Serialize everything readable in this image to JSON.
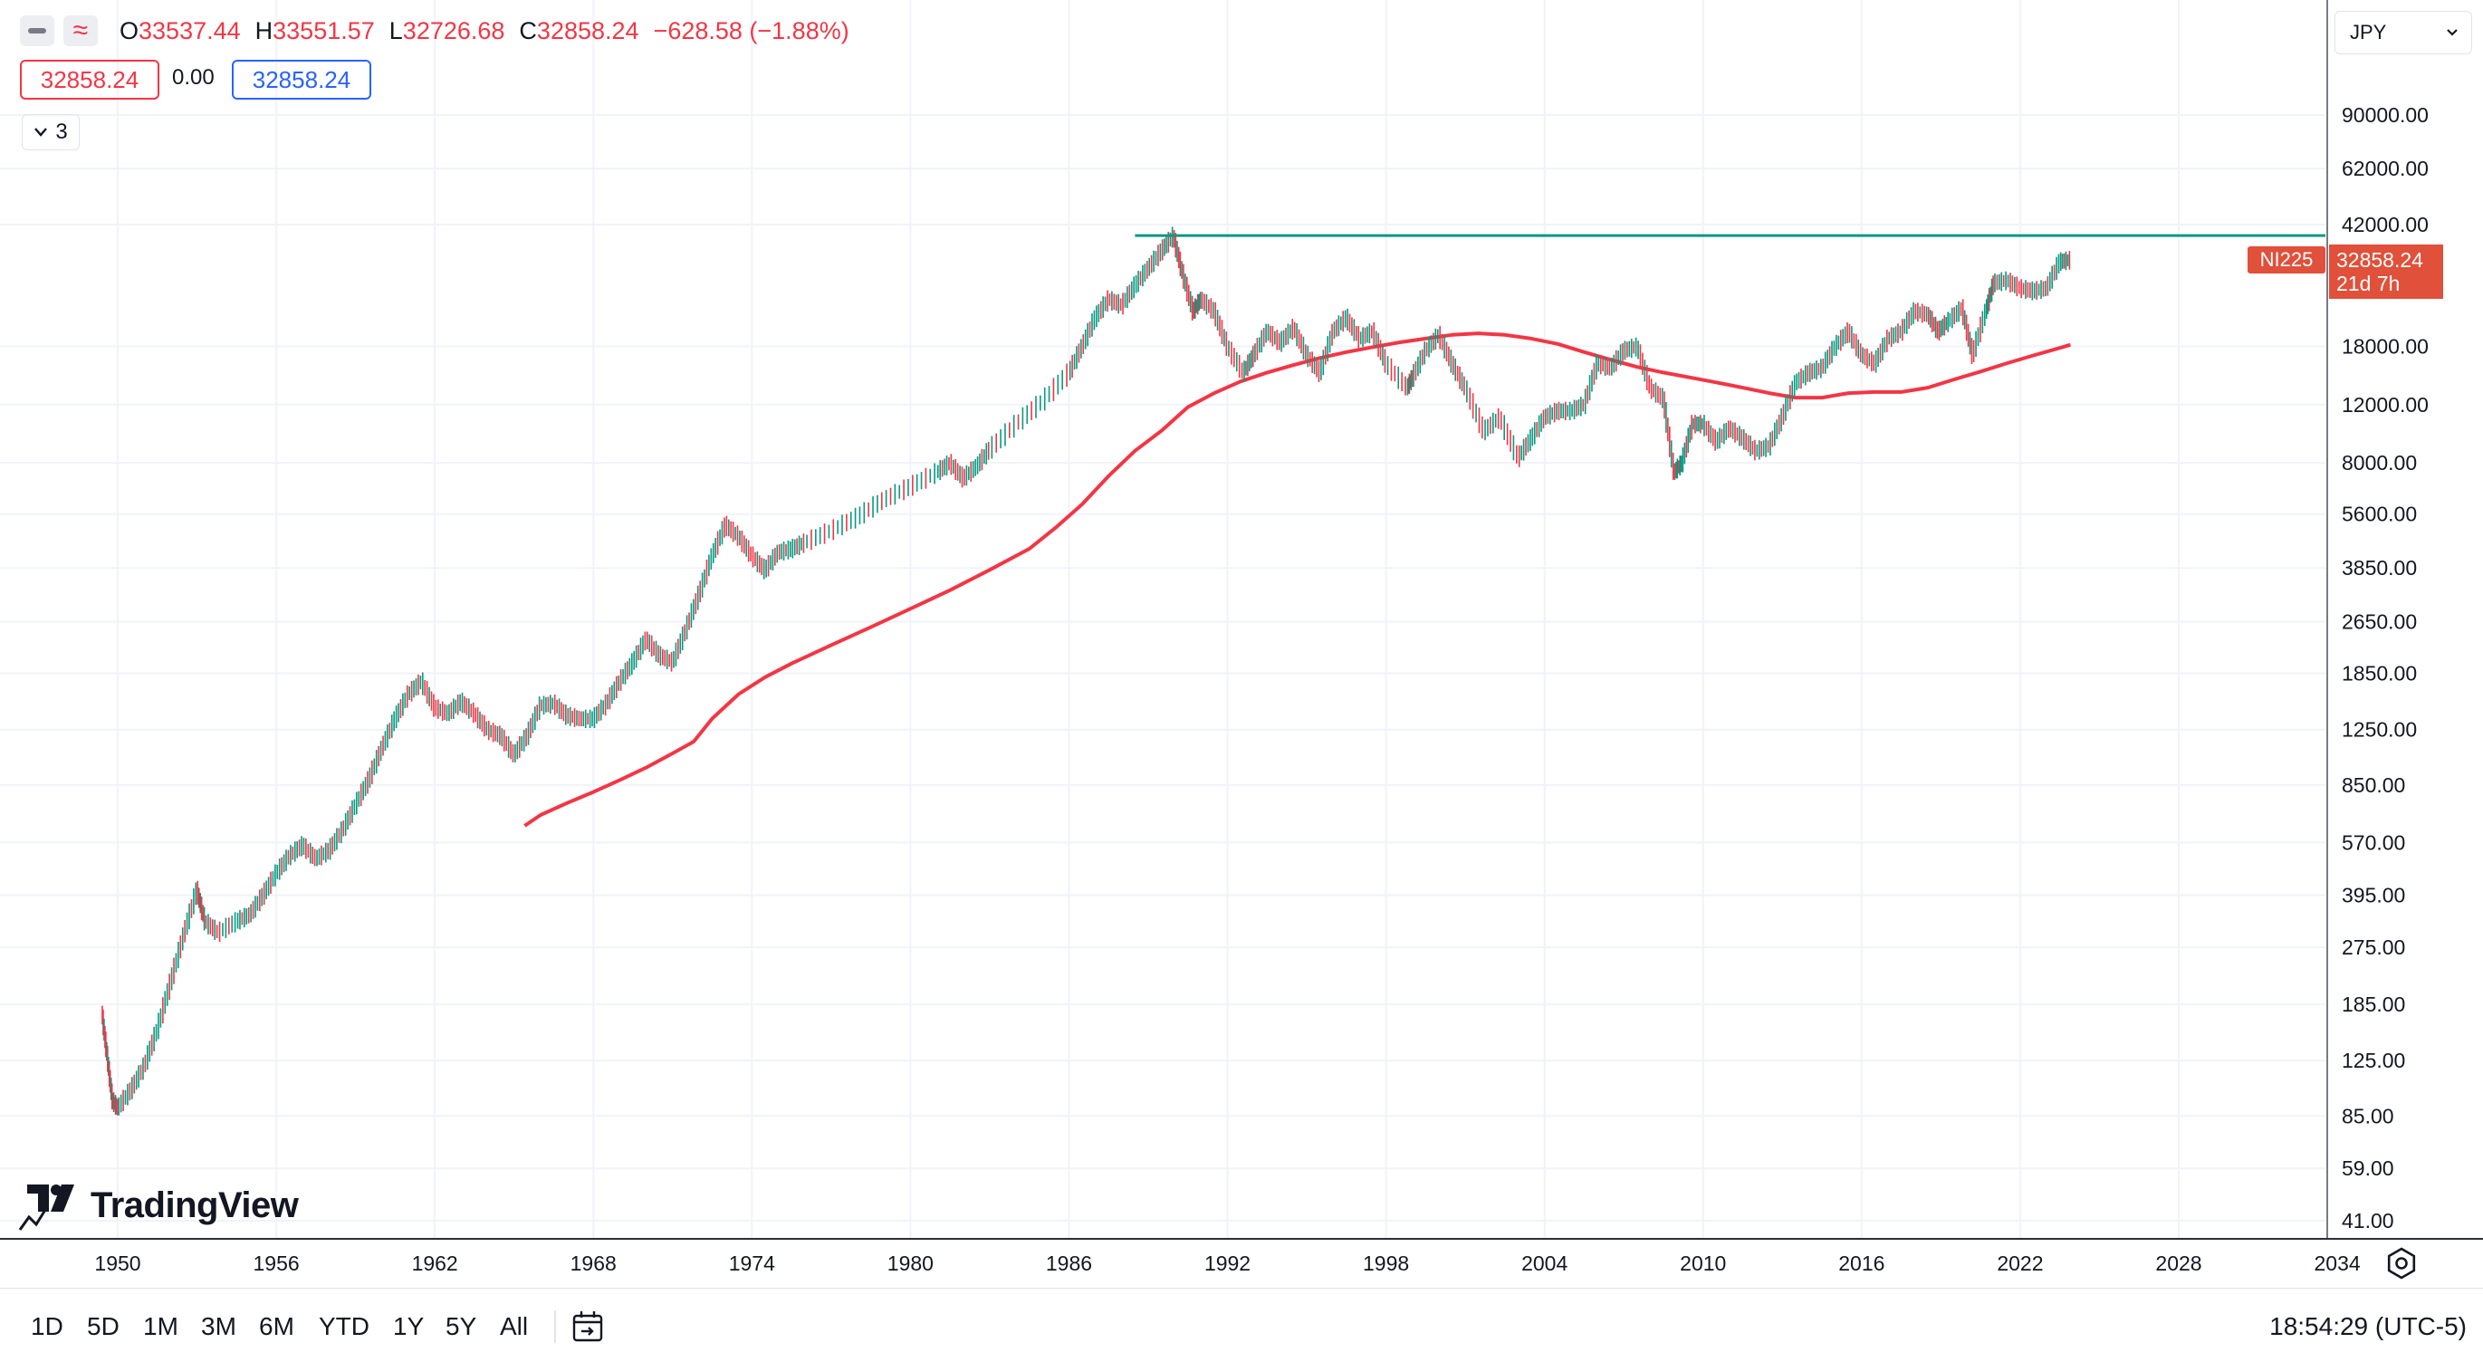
{
  "legend": {
    "ohlc": [
      {
        "label": "O",
        "value": "33537.44"
      },
      {
        "label": "H",
        "value": "33551.57"
      },
      {
        "label": "L",
        "value": "32726.68"
      },
      {
        "label": "C",
        "value": "32858.24"
      }
    ],
    "change": "−628.58 (−1.88%)",
    "bid": "32858.24",
    "spread": "0.00",
    "ask": "32858.24",
    "collapsed_count": "3"
  },
  "currency": "JPY",
  "price_label": {
    "symbol": "NI225",
    "price": "32858.24",
    "countdown": "21d 7h"
  },
  "ranges": [
    "1D",
    "5D",
    "1M",
    "3M",
    "6M",
    "YTD",
    "1Y",
    "5Y",
    "All"
  ],
  "clock": "18:54:29 (UTC-5)",
  "logo_text": "TradingView",
  "colors": {
    "up": "#089981",
    "down": "#f23645",
    "ma": "#f23645",
    "resistance": "#089981",
    "label_bg": "#e0503a",
    "ask_border": "#2962ff"
  },
  "chart_data": {
    "type": "line",
    "scale": "log",
    "grid": true,
    "y_ticks": [
      "90000.00",
      "62000.00",
      "42000.00",
      "18000.00",
      "12000.00",
      "8000.00",
      "5600.00",
      "3850.00",
      "2650.00",
      "1850.00",
      "1250.00",
      "850.00",
      "570.00",
      "395.00",
      "275.00",
      "185.00",
      "125.00",
      "85.00",
      "59.00",
      "41.00"
    ],
    "x_ticks": [
      "1950",
      "1956",
      "1962",
      "1968",
      "1974",
      "1980",
      "1986",
      "1992",
      "1998",
      "2004",
      "2010",
      "2016",
      "2022",
      "2028",
      "2034"
    ],
    "xlim": [
      1949.6,
      2035.3
    ],
    "series": [
      {
        "role": "price",
        "points": [
          [
            1949.4,
            176
          ],
          [
            1949.6,
            130
          ],
          [
            1949.8,
            95
          ],
          [
            1950.0,
            90
          ],
          [
            1950.5,
            102
          ],
          [
            1951.0,
            120
          ],
          [
            1951.5,
            155
          ],
          [
            1952.0,
            215
          ],
          [
            1952.5,
            300
          ],
          [
            1953.0,
            410
          ],
          [
            1953.3,
            330
          ],
          [
            1953.8,
            305
          ],
          [
            1954.5,
            330
          ],
          [
            1955.0,
            345
          ],
          [
            1955.5,
            395
          ],
          [
            1956.0,
            460
          ],
          [
            1956.5,
            520
          ],
          [
            1957.0,
            560
          ],
          [
            1957.5,
            510
          ],
          [
            1958.0,
            540
          ],
          [
            1958.5,
            620
          ],
          [
            1959.0,
            740
          ],
          [
            1959.5,
            880
          ],
          [
            1960.0,
            1100
          ],
          [
            1960.5,
            1350
          ],
          [
            1961.0,
            1600
          ],
          [
            1961.5,
            1750
          ],
          [
            1962.0,
            1460
          ],
          [
            1962.5,
            1400
          ],
          [
            1963.0,
            1520
          ],
          [
            1963.5,
            1400
          ],
          [
            1964.0,
            1250
          ],
          [
            1964.5,
            1200
          ],
          [
            1965.0,
            1050
          ],
          [
            1965.5,
            1200
          ],
          [
            1966.0,
            1480
          ],
          [
            1966.5,
            1500
          ],
          [
            1967.0,
            1380
          ],
          [
            1967.5,
            1350
          ],
          [
            1968.0,
            1350
          ],
          [
            1968.5,
            1500
          ],
          [
            1969.0,
            1750
          ],
          [
            1969.5,
            2000
          ],
          [
            1970.0,
            2350
          ],
          [
            1970.5,
            2100
          ],
          [
            1971.0,
            2000
          ],
          [
            1971.5,
            2500
          ],
          [
            1972.0,
            3200
          ],
          [
            1972.5,
            4200
          ],
          [
            1973.0,
            5200
          ],
          [
            1973.5,
            4800
          ],
          [
            1974.0,
            4200
          ],
          [
            1974.5,
            3800
          ],
          [
            1975.0,
            4300
          ],
          [
            1975.5,
            4400
          ],
          [
            1976.0,
            4600
          ],
          [
            1977.0,
            5000
          ],
          [
            1978.0,
            5500
          ],
          [
            1979.0,
            6200
          ],
          [
            1980.0,
            6800
          ],
          [
            1981.0,
            7500
          ],
          [
            1981.5,
            8000
          ],
          [
            1982.0,
            7200
          ],
          [
            1982.5,
            7800
          ],
          [
            1983.0,
            8800
          ],
          [
            1984.0,
            10500
          ],
          [
            1985.0,
            12300
          ],
          [
            1986.0,
            15000
          ],
          [
            1986.5,
            18000
          ],
          [
            1987.0,
            22000
          ],
          [
            1987.5,
            25000
          ],
          [
            1988.0,
            24000
          ],
          [
            1988.5,
            27500
          ],
          [
            1989.0,
            31000
          ],
          [
            1989.5,
            35000
          ],
          [
            1989.95,
            38900
          ],
          [
            1990.3,
            30000
          ],
          [
            1990.7,
            23000
          ],
          [
            1991.0,
            25000
          ],
          [
            1991.5,
            23000
          ],
          [
            1992.0,
            18000
          ],
          [
            1992.6,
            15000
          ],
          [
            1993.0,
            17000
          ],
          [
            1993.5,
            20000
          ],
          [
            1994.0,
            18500
          ],
          [
            1994.5,
            20500
          ],
          [
            1995.0,
            17000
          ],
          [
            1995.5,
            15000
          ],
          [
            1996.0,
            20000
          ],
          [
            1996.5,
            22000
          ],
          [
            1997.0,
            19000
          ],
          [
            1997.5,
            20000
          ],
          [
            1998.0,
            16000
          ],
          [
            1998.8,
            13500
          ],
          [
            1999.0,
            14500
          ],
          [
            1999.5,
            17500
          ],
          [
            2000.0,
            19500
          ],
          [
            2000.5,
            16000
          ],
          [
            2001.0,
            13500
          ],
          [
            2001.7,
            10000
          ],
          [
            2002.3,
            11000
          ],
          [
            2003.0,
            8300
          ],
          [
            2003.5,
            9500
          ],
          [
            2004.0,
            11000
          ],
          [
            2004.5,
            11500
          ],
          [
            2005.0,
            11500
          ],
          [
            2005.5,
            12000
          ],
          [
            2006.0,
            16000
          ],
          [
            2006.5,
            15500
          ],
          [
            2007.0,
            17500
          ],
          [
            2007.5,
            18000
          ],
          [
            2008.0,
            13500
          ],
          [
            2008.5,
            12500
          ],
          [
            2008.9,
            7500
          ],
          [
            2009.2,
            8000
          ],
          [
            2009.6,
            10500
          ],
          [
            2010.0,
            10500
          ],
          [
            2010.5,
            9300
          ],
          [
            2011.0,
            10200
          ],
          [
            2011.5,
            9500
          ],
          [
            2012.0,
            8700
          ],
          [
            2012.5,
            9000
          ],
          [
            2013.0,
            11000
          ],
          [
            2013.5,
            14000
          ],
          [
            2014.0,
            15000
          ],
          [
            2014.5,
            15500
          ],
          [
            2015.0,
            18000
          ],
          [
            2015.5,
            20000
          ],
          [
            2016.0,
            17000
          ],
          [
            2016.5,
            16000
          ],
          [
            2017.0,
            19000
          ],
          [
            2017.5,
            20000
          ],
          [
            2018.0,
            23000
          ],
          [
            2018.5,
            22500
          ],
          [
            2018.9,
            20000
          ],
          [
            2019.3,
            21500
          ],
          [
            2019.8,
            23500
          ],
          [
            2020.2,
            17000
          ],
          [
            2020.7,
            23000
          ],
          [
            2021.0,
            28000
          ],
          [
            2021.5,
            28500
          ],
          [
            2022.0,
            27000
          ],
          [
            2022.5,
            26500
          ],
          [
            2023.0,
            27000
          ],
          [
            2023.5,
            32500
          ],
          [
            2023.9,
            32858
          ]
        ]
      },
      {
        "role": "moving-average",
        "points": [
          [
            1965.4,
            640
          ],
          [
            1966.0,
            690
          ],
          [
            1967.0,
            750
          ],
          [
            1968.0,
            810
          ],
          [
            1969.0,
            880
          ],
          [
            1970.0,
            960
          ],
          [
            1971.0,
            1060
          ],
          [
            1971.8,
            1150
          ],
          [
            1972.5,
            1350
          ],
          [
            1973.5,
            1600
          ],
          [
            1974.5,
            1800
          ],
          [
            1975.5,
            1980
          ],
          [
            1977.0,
            2250
          ],
          [
            1978.5,
            2550
          ],
          [
            1980.0,
            2900
          ],
          [
            1981.5,
            3300
          ],
          [
            1983.0,
            3800
          ],
          [
            1984.5,
            4400
          ],
          [
            1985.5,
            5100
          ],
          [
            1986.5,
            6000
          ],
          [
            1987.5,
            7300
          ],
          [
            1988.5,
            8700
          ],
          [
            1989.5,
            10000
          ],
          [
            1990.5,
            11800
          ],
          [
            1991.5,
            13000
          ],
          [
            1992.5,
            14100
          ],
          [
            1993.5,
            15000
          ],
          [
            1994.5,
            15800
          ],
          [
            1995.5,
            16600
          ],
          [
            1996.5,
            17300
          ],
          [
            1997.5,
            17900
          ],
          [
            1998.5,
            18500
          ],
          [
            1999.5,
            19000
          ],
          [
            2000.5,
            19500
          ],
          [
            2001.5,
            19700
          ],
          [
            2002.5,
            19500
          ],
          [
            2003.5,
            19000
          ],
          [
            2004.5,
            18300
          ],
          [
            2005.5,
            17300
          ],
          [
            2006.5,
            16400
          ],
          [
            2007.5,
            15600
          ],
          [
            2008.5,
            15000
          ],
          [
            2009.5,
            14500
          ],
          [
            2010.5,
            14000
          ],
          [
            2011.5,
            13500
          ],
          [
            2012.5,
            13000
          ],
          [
            2013.5,
            12600
          ],
          [
            2014.5,
            12600
          ],
          [
            2015.5,
            13000
          ],
          [
            2016.5,
            13100
          ],
          [
            2017.5,
            13100
          ],
          [
            2018.5,
            13500
          ],
          [
            2019.5,
            14300
          ],
          [
            2020.5,
            15100
          ],
          [
            2021.5,
            16000
          ],
          [
            2022.5,
            16900
          ],
          [
            2023.5,
            17800
          ],
          [
            2023.9,
            18200
          ]
        ]
      },
      {
        "role": "resistance",
        "points": [
          [
            1988.5,
            38900
          ],
          [
            2035.3,
            38900
          ]
        ]
      }
    ]
  }
}
